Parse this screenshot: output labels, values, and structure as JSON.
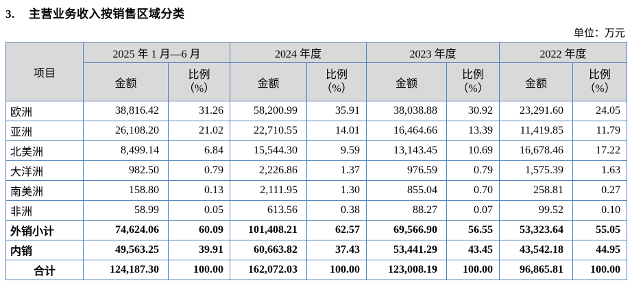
{
  "title": {
    "number": "3.",
    "text": "主营业务收入按销售区域分类"
  },
  "unit_label": "单位：万元",
  "table": {
    "item_header": "项目",
    "periods": [
      "2025 年 1 月—6 月",
      "2024 年度",
      "2023 年度",
      "2022 年度"
    ],
    "amount_label": "金额",
    "ratio_label": "比例",
    "ratio_unit": "（%）",
    "rows": [
      {
        "label": "欧洲",
        "bold": false,
        "center": false,
        "values": [
          "38,816.42",
          "31.26",
          "58,200.99",
          "35.91",
          "38,038.88",
          "30.92",
          "23,291.60",
          "24.05"
        ]
      },
      {
        "label": "亚洲",
        "bold": false,
        "center": false,
        "values": [
          "26,108.20",
          "21.02",
          "22,710.55",
          "14.01",
          "16,464.66",
          "13.39",
          "11,419.85",
          "11.79"
        ]
      },
      {
        "label": "北美洲",
        "bold": false,
        "center": false,
        "values": [
          "8,499.14",
          "6.84",
          "15,544.30",
          "9.59",
          "13,143.45",
          "10.69",
          "16,678.46",
          "17.22"
        ]
      },
      {
        "label": "大洋洲",
        "bold": false,
        "center": false,
        "values": [
          "982.50",
          "0.79",
          "2,226.86",
          "1.37",
          "976.59",
          "0.79",
          "1,575.39",
          "1.63"
        ]
      },
      {
        "label": "南美洲",
        "bold": false,
        "center": false,
        "values": [
          "158.80",
          "0.13",
          "2,111.95",
          "1.30",
          "855.04",
          "0.70",
          "258.81",
          "0.27"
        ]
      },
      {
        "label": "非洲",
        "bold": false,
        "center": false,
        "values": [
          "58.99",
          "0.05",
          "613.56",
          "0.38",
          "88.27",
          "0.07",
          "99.52",
          "0.10"
        ]
      },
      {
        "label": "外销小计",
        "bold": true,
        "center": false,
        "values": [
          "74,624.06",
          "60.09",
          "101,408.21",
          "62.57",
          "69,566.90",
          "56.55",
          "53,323.64",
          "55.05"
        ]
      },
      {
        "label": "内销",
        "bold": true,
        "center": false,
        "values": [
          "49,563.25",
          "39.91",
          "60,663.82",
          "37.43",
          "53,441.29",
          "43.45",
          "43,542.18",
          "44.95"
        ]
      },
      {
        "label": "合计",
        "bold": true,
        "center": true,
        "values": [
          "124,187.30",
          "100.00",
          "162,072.03",
          "100.00",
          "123,008.19",
          "100.00",
          "96,865.81",
          "100.00"
        ]
      }
    ]
  }
}
